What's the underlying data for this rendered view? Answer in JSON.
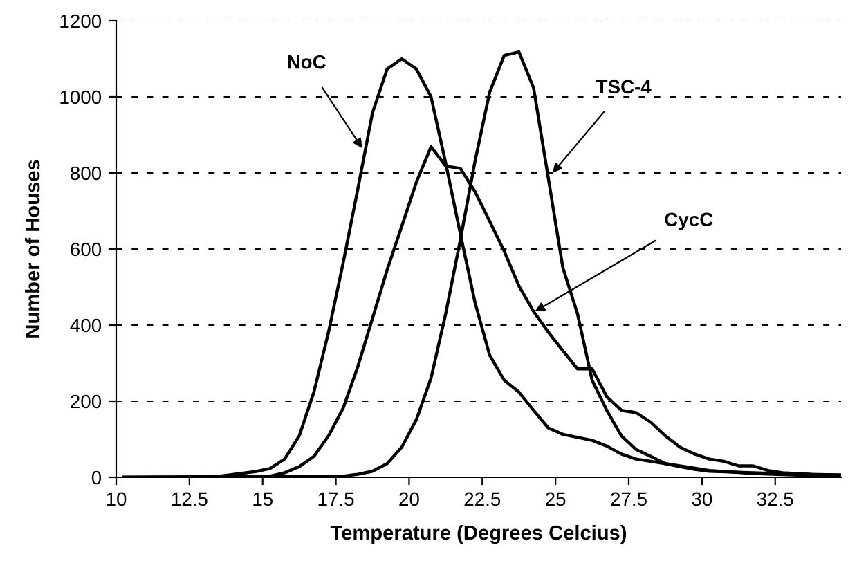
{
  "chart_data": {
    "type": "line",
    "xlabel": "Temperature (Degrees Celcius)",
    "ylabel": "Number of Houses",
    "xlim": [
      10,
      34.75
    ],
    "xticks": [
      10,
      12.5,
      15,
      17.5,
      20,
      22.5,
      25,
      27.5,
      30,
      32.5
    ],
    "ylim": [
      0,
      1200
    ],
    "yticks": [
      0,
      200,
      400,
      600,
      800,
      1000,
      1200
    ],
    "grid": "y",
    "legend": false,
    "marker": "none",
    "line_style": "solid",
    "series": [
      {
        "color": "#000000",
        "x": [
          10.25,
          13.25,
          13.75,
          14.25,
          14.75,
          15.25,
          15.75,
          16.25,
          16.75,
          17.25,
          17.75,
          18.25,
          18.75,
          19.25,
          19.75,
          20.25,
          20.75,
          21.25,
          21.75,
          22.25,
          22.75,
          23.25,
          23.75,
          24.25,
          24.75,
          25.25,
          26.25,
          26.75,
          27.25,
          27.75,
          28.75,
          30.25,
          31.75,
          33.25,
          34.75
        ],
        "values": [
          0,
          0,
          5,
          10,
          15,
          23,
          48,
          109,
          224,
          382,
          564,
          758,
          958,
          1073,
          1100,
          1073,
          1000,
          826,
          640,
          460,
          321,
          255,
          224,
          176,
          130,
          113,
          97,
          82,
          61,
          48,
          36,
          18,
          10,
          6,
          4
        ]
      },
      {
        "color": "#000000",
        "x": [
          10.25,
          15.25,
          15.75,
          16.25,
          16.75,
          17.25,
          17.75,
          18.25,
          18.75,
          19.25,
          19.75,
          20.25,
          20.75,
          21.25,
          21.75,
          22.25,
          22.75,
          23.25,
          23.75,
          24.25,
          24.75,
          25.25,
          25.75,
          26.25,
          26.75,
          27.25,
          27.75,
          28.25,
          28.75,
          29.25,
          29.75,
          30.25,
          30.75,
          31.25,
          31.75,
          32.25,
          32.75,
          33.75,
          34.75
        ],
        "values": [
          0,
          3,
          12,
          28,
          55,
          109,
          182,
          291,
          418,
          545,
          660,
          776,
          869,
          818,
          812,
          751,
          673,
          594,
          503,
          436,
          382,
          333,
          285,
          285,
          212,
          176,
          170,
          145,
          109,
          79,
          61,
          48,
          42,
          30,
          30,
          18,
          12,
          8,
          6
        ]
      },
      {
        "color": "#000000",
        "x": [
          10.25,
          17.75,
          18.25,
          18.75,
          19.25,
          19.75,
          20.25,
          20.75,
          21.25,
          21.75,
          22.25,
          22.75,
          23.25,
          23.75,
          24.25,
          24.75,
          25.25,
          25.75,
          26.25,
          26.75,
          27.25,
          27.75,
          28.25,
          28.75,
          29.25,
          29.75,
          30.25,
          31.75,
          33.25,
          34.75
        ],
        "values": [
          0,
          3,
          8,
          16,
          36,
          79,
          152,
          261,
          430,
          624,
          830,
          1012,
          1109,
          1118,
          1024,
          788,
          551,
          430,
          255,
          176,
          109,
          73,
          55,
          36,
          28,
          21,
          16,
          12,
          8,
          6
        ]
      }
    ],
    "annotations": [
      {
        "text": "NoC",
        "x": 18.4,
        "y": 865
      },
      {
        "text": "TSC-4",
        "x": 24.9,
        "y": 800
      },
      {
        "text": "CycC",
        "x": 24.3,
        "y": 436
      }
    ]
  }
}
